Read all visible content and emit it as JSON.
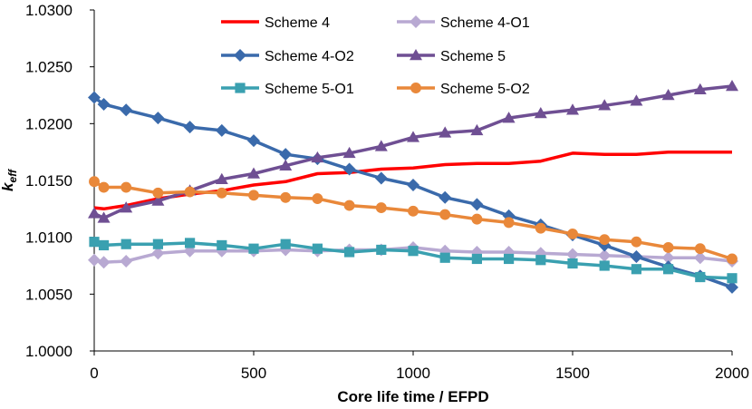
{
  "chart_data": {
    "type": "line",
    "title": "",
    "xlabel": "Core life time / EFPD",
    "ylabel": "k",
    "ylabel_sub": "eff",
    "xlim": [
      0,
      2000
    ],
    "ylim": [
      1.0,
      1.03
    ],
    "xticks": [
      0,
      500,
      1000,
      1500,
      2000
    ],
    "xtick_labels": [
      "0",
      "500",
      "1000",
      "1500",
      "2000"
    ],
    "yticks": [
      1.0,
      1.005,
      1.01,
      1.015,
      1.02,
      1.025,
      1.03
    ],
    "ytick_labels": [
      "1.0000",
      "1.0050",
      "1.0100",
      "1.0150",
      "1.0200",
      "1.0250",
      "1.0300"
    ],
    "legend_position": "top",
    "series": [
      {
        "name": "Scheme 4",
        "color": "#ff0000",
        "marker": "none",
        "x": [
          0,
          30,
          100,
          200,
          300,
          400,
          500,
          600,
          700,
          800,
          900,
          1000,
          1100,
          1200,
          1300,
          1400,
          1500,
          1600,
          1700,
          1800,
          1900,
          2000
        ],
        "y": [
          1.0126,
          1.0125,
          1.0128,
          1.0134,
          1.0138,
          1.0141,
          1.0146,
          1.0149,
          1.0156,
          1.0157,
          1.016,
          1.0161,
          1.0164,
          1.0165,
          1.0165,
          1.0167,
          1.0174,
          1.0173,
          1.0173,
          1.0175,
          1.0175,
          1.0175
        ]
      },
      {
        "name": "Scheme 4-O1",
        "color": "#b8a9d2",
        "marker": "diamond",
        "x": [
          0,
          30,
          100,
          200,
          300,
          400,
          500,
          600,
          700,
          800,
          900,
          1000,
          1100,
          1200,
          1300,
          1400,
          1500,
          1600,
          1700,
          1800,
          1900,
          2000
        ],
        "y": [
          1.008,
          1.0078,
          1.0079,
          1.0086,
          1.0088,
          1.0088,
          1.0088,
          1.0089,
          1.0088,
          1.0089,
          1.0089,
          1.0091,
          1.0088,
          1.0087,
          1.0087,
          1.0086,
          1.0085,
          1.0084,
          1.0083,
          1.0082,
          1.0082,
          1.0079
        ]
      },
      {
        "name": "Scheme 4-O2",
        "color": "#3a6aab",
        "marker": "diamond",
        "x": [
          0,
          30,
          100,
          200,
          300,
          400,
          500,
          600,
          700,
          800,
          900,
          1000,
          1100,
          1200,
          1300,
          1400,
          1500,
          1600,
          1700,
          1800,
          1900,
          2000
        ],
        "y": [
          1.0223,
          1.0217,
          1.0212,
          1.0205,
          1.0197,
          1.0194,
          1.0185,
          1.0173,
          1.0169,
          1.016,
          1.0152,
          1.0146,
          1.0135,
          1.0129,
          1.0119,
          1.0111,
          1.0102,
          1.0093,
          1.0083,
          1.0074,
          1.0066,
          1.0056
        ]
      },
      {
        "name": "Scheme 5",
        "color": "#6f4f93",
        "marker": "triangle",
        "x": [
          0,
          30,
          100,
          200,
          300,
          400,
          500,
          600,
          700,
          800,
          900,
          1000,
          1100,
          1200,
          1300,
          1400,
          1500,
          1600,
          1700,
          1800,
          1900,
          2000
        ],
        "y": [
          1.0121,
          1.0117,
          1.0126,
          1.0132,
          1.0141,
          1.0151,
          1.0156,
          1.0163,
          1.017,
          1.0174,
          1.018,
          1.0188,
          1.0192,
          1.0194,
          1.0205,
          1.0209,
          1.0212,
          1.0216,
          1.022,
          1.0225,
          1.023,
          1.0233
        ]
      },
      {
        "name": "Scheme 5-O1",
        "color": "#3aa0b0",
        "marker": "square",
        "x": [
          0,
          30,
          100,
          200,
          300,
          400,
          500,
          600,
          700,
          800,
          900,
          1000,
          1100,
          1200,
          1300,
          1400,
          1500,
          1600,
          1700,
          1800,
          1900,
          2000
        ],
        "y": [
          1.0096,
          1.0093,
          1.0094,
          1.0094,
          1.0095,
          1.0093,
          1.009,
          1.0094,
          1.009,
          1.0087,
          1.0089,
          1.0088,
          1.0082,
          1.0081,
          1.0081,
          1.008,
          1.0077,
          1.0075,
          1.0072,
          1.0072,
          1.0065,
          1.0064
        ]
      },
      {
        "name": "Scheme 5-O2",
        "color": "#e9883a",
        "marker": "circle",
        "x": [
          0,
          30,
          100,
          200,
          300,
          400,
          500,
          600,
          700,
          800,
          900,
          1000,
          1100,
          1200,
          1300,
          1400,
          1500,
          1600,
          1700,
          1800,
          1900,
          2000
        ],
        "y": [
          1.0149,
          1.0144,
          1.0144,
          1.0139,
          1.014,
          1.0139,
          1.0137,
          1.0135,
          1.0134,
          1.0128,
          1.0126,
          1.0123,
          1.012,
          1.0116,
          1.0113,
          1.0108,
          1.0103,
          1.0098,
          1.0096,
          1.0091,
          1.009,
          1.0081
        ]
      }
    ]
  }
}
